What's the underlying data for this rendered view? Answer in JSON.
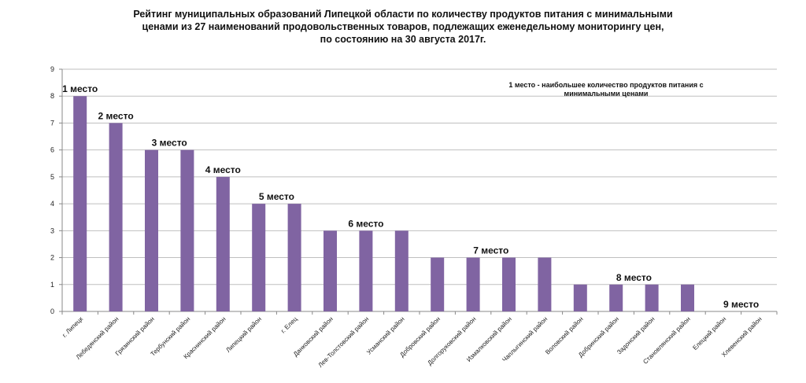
{
  "chart_data": {
    "type": "bar",
    "title_lines": [
      "Рейтинг муниципальных образований Липецкой области по количеству продуктов питания с минимальными",
      "ценами из 27 наименований продовольственных товаров, подлежащих еженедельному мониторингу цен,",
      "по состоянию на 30 августа 2017г."
    ],
    "categories": [
      "г. Липецк",
      "Лебедянский район",
      "Грязинский район",
      "Тербунский район",
      "Краснинский район",
      "Липецкий район",
      "г. Елец",
      "Данковский район",
      "Лев-Толстовский район",
      "Усманский район",
      "Добровский район",
      "Долгоруковский район",
      "Измалковский район",
      "Чаплыгинский район",
      "Воловский район",
      "Добринский район",
      "Задонский район",
      "Становлянский район",
      "Елецкий район",
      "Хлевенский район"
    ],
    "values": [
      8,
      7,
      6,
      6,
      5,
      4,
      4,
      3,
      3,
      3,
      2,
      2,
      2,
      2,
      1,
      1,
      1,
      1,
      0,
      0
    ],
    "ylim": [
      0,
      9
    ],
    "yticks": [
      0,
      1,
      2,
      3,
      4,
      5,
      6,
      7,
      8,
      9
    ],
    "grid": true,
    "bar_color": "#8064a2",
    "place_labels": [
      {
        "text": "1 место",
        "cat_index": 0,
        "value": 8
      },
      {
        "text": "2 место",
        "cat_index": 1,
        "value": 7
      },
      {
        "text": "3 место",
        "cat_index": 2.5,
        "value": 6
      },
      {
        "text": "4 место",
        "cat_index": 4,
        "value": 5
      },
      {
        "text": "5 место",
        "cat_index": 5.5,
        "value": 4
      },
      {
        "text": "6 место",
        "cat_index": 8,
        "value": 3
      },
      {
        "text": "7 место",
        "cat_index": 11.5,
        "value": 2
      },
      {
        "text": "8 место",
        "cat_index": 15.5,
        "value": 1
      },
      {
        "text": "9 место",
        "cat_index": 18.5,
        "value": 0
      }
    ],
    "note_lines": [
      "1 место - наибольшее количество продуктов питания с",
      "минимальными ценами"
    ]
  }
}
